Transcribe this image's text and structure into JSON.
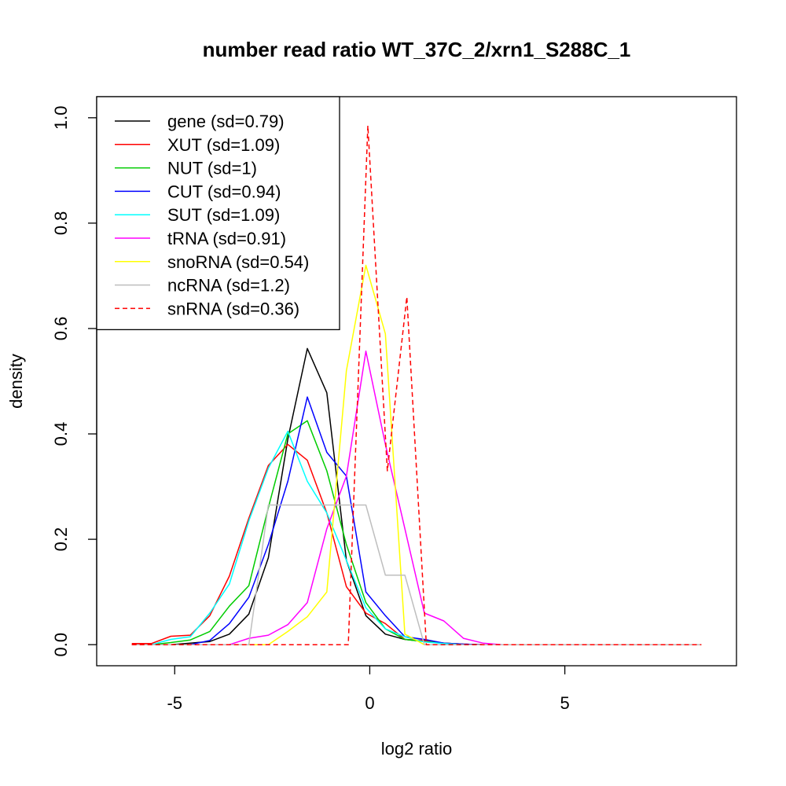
{
  "chart_data": {
    "type": "line",
    "title": "number read ratio WT_37C_2/xrn1_S288C_1",
    "xlabel": "log2 ratio",
    "ylabel": "density",
    "xlim": [
      -7,
      9.4
    ],
    "ylim": [
      -0.04,
      1.04
    ],
    "xticks": [
      -5,
      0,
      5
    ],
    "xtick_labels": [
      "-5",
      "0",
      "5"
    ],
    "yticks": [
      0,
      0.2,
      0.4,
      0.6,
      0.8,
      1.0
    ],
    "ytick_labels": [
      "0.0",
      "0.2",
      "0.4",
      "0.6",
      "0.8",
      "1.0"
    ],
    "grid": false,
    "legend_position": "top-left",
    "x": [
      -6.1,
      -5.6,
      -5.1,
      -4.6,
      -4.1,
      -3.6,
      -3.1,
      -2.6,
      -2.1,
      -1.6,
      -1.1,
      -0.6,
      -0.1,
      0.4,
      0.9,
      1.4,
      1.9,
      2.4,
      2.9,
      3.4,
      3.9,
      4.4,
      4.9,
      5.4,
      5.9,
      6.4,
      6.9,
      7.4,
      7.9,
      8.5
    ],
    "series": [
      {
        "name": "gene (sd=0.79)",
        "color": "#000000",
        "dash": false,
        "values": [
          0,
          0,
          0,
          0.003,
          0.006,
          0.02,
          0.058,
          0.165,
          0.39,
          0.562,
          0.478,
          0.16,
          0.055,
          0.02,
          0.01,
          0.006,
          0.003,
          0.001,
          0,
          0,
          0,
          0,
          0,
          0,
          0,
          0,
          0,
          0,
          0,
          0
        ]
      },
      {
        "name": "XUT (sd=1.09)",
        "color": "#ff0000",
        "dash": false,
        "values": [
          0.002,
          0.002,
          0.016,
          0.018,
          0.055,
          0.13,
          0.24,
          0.34,
          0.38,
          0.35,
          0.25,
          0.11,
          0.06,
          0.04,
          0.01,
          0.008,
          0.003,
          0.001,
          0,
          0,
          0,
          0,
          0,
          0,
          0,
          0,
          0,
          0,
          0,
          0
        ]
      },
      {
        "name": "NUT (sd=1)",
        "color": "#00cc00",
        "dash": false,
        "values": [
          0,
          0,
          0.004,
          0.009,
          0.025,
          0.073,
          0.112,
          0.26,
          0.4,
          0.425,
          0.33,
          0.19,
          0.08,
          0.03,
          0.01,
          0.006,
          0.003,
          0,
          0,
          0,
          0,
          0,
          0,
          0,
          0,
          0,
          0,
          0,
          0,
          0
        ]
      },
      {
        "name": "CUT (sd=0.94)",
        "color": "#0000ff",
        "dash": false,
        "values": [
          0,
          0,
          0,
          0,
          0.008,
          0.04,
          0.09,
          0.19,
          0.31,
          0.47,
          0.365,
          0.32,
          0.1,
          0.055,
          0.015,
          0.01,
          0.003,
          0.001,
          0,
          0,
          0,
          0,
          0,
          0,
          0,
          0,
          0,
          0,
          0,
          0
        ]
      },
      {
        "name": "SUT (sd=1.09)",
        "color": "#00ffff",
        "dash": false,
        "values": [
          0,
          0,
          0.01,
          0.015,
          0.06,
          0.115,
          0.235,
          0.335,
          0.405,
          0.31,
          0.25,
          0.16,
          0.07,
          0.03,
          0.015,
          0.005,
          0.002,
          0,
          0,
          0,
          0,
          0,
          0,
          0,
          0,
          0,
          0,
          0,
          0,
          0
        ]
      },
      {
        "name": "tRNA (sd=0.91)",
        "color": "#ff00ff",
        "dash": false,
        "values": [
          0,
          0,
          0,
          0,
          0,
          0,
          0.012,
          0.018,
          0.038,
          0.08,
          0.22,
          0.32,
          0.557,
          0.38,
          0.22,
          0.06,
          0.045,
          0.012,
          0.003,
          0,
          0,
          0,
          0,
          0,
          0,
          0,
          0,
          0,
          0,
          0
        ]
      },
      {
        "name": "snoRNA (sd=0.54)",
        "color": "#ffff00",
        "dash": false,
        "values": [
          0,
          0,
          0,
          0,
          0,
          0,
          0,
          0,
          0.025,
          0.053,
          0.1,
          0.52,
          0.72,
          0.59,
          0.02,
          0,
          0,
          0,
          0,
          0,
          0,
          0,
          0,
          0,
          0,
          0,
          0,
          0,
          0,
          0
        ]
      },
      {
        "name": "ncRNA (sd=1.2)",
        "color": "#bebebe",
        "dash": false,
        "values": [
          0,
          0,
          0,
          0,
          0,
          0,
          0,
          0.265,
          0.265,
          0.265,
          0.265,
          0.265,
          0.265,
          0.132,
          0.132,
          0,
          0,
          0,
          0,
          0,
          0,
          0,
          0,
          0,
          0,
          0,
          0,
          0,
          0,
          0
        ]
      },
      {
        "name": "snRNA (sd=0.36)",
        "color": "#ff0000",
        "dash": true,
        "values": [
          0,
          0,
          0,
          0,
          0,
          0,
          0,
          0,
          0,
          0,
          0,
          0,
          0.985,
          0.33,
          0.66,
          0,
          0,
          0,
          0,
          0,
          0,
          0,
          0,
          0,
          0,
          0,
          0,
          0,
          0,
          0
        ],
        "x": [
          -6.1,
          -5.6,
          -5.1,
          -4.6,
          -4.1,
          -3.6,
          -3.1,
          -2.6,
          -2.1,
          -1.6,
          -1.1,
          -0.55,
          -0.05,
          0.45,
          0.95,
          1.45,
          1.9,
          2.4,
          2.9,
          3.4,
          3.9,
          4.4,
          4.9,
          5.4,
          5.9,
          6.4,
          6.9,
          7.4,
          7.9,
          8.5
        ]
      }
    ]
  }
}
